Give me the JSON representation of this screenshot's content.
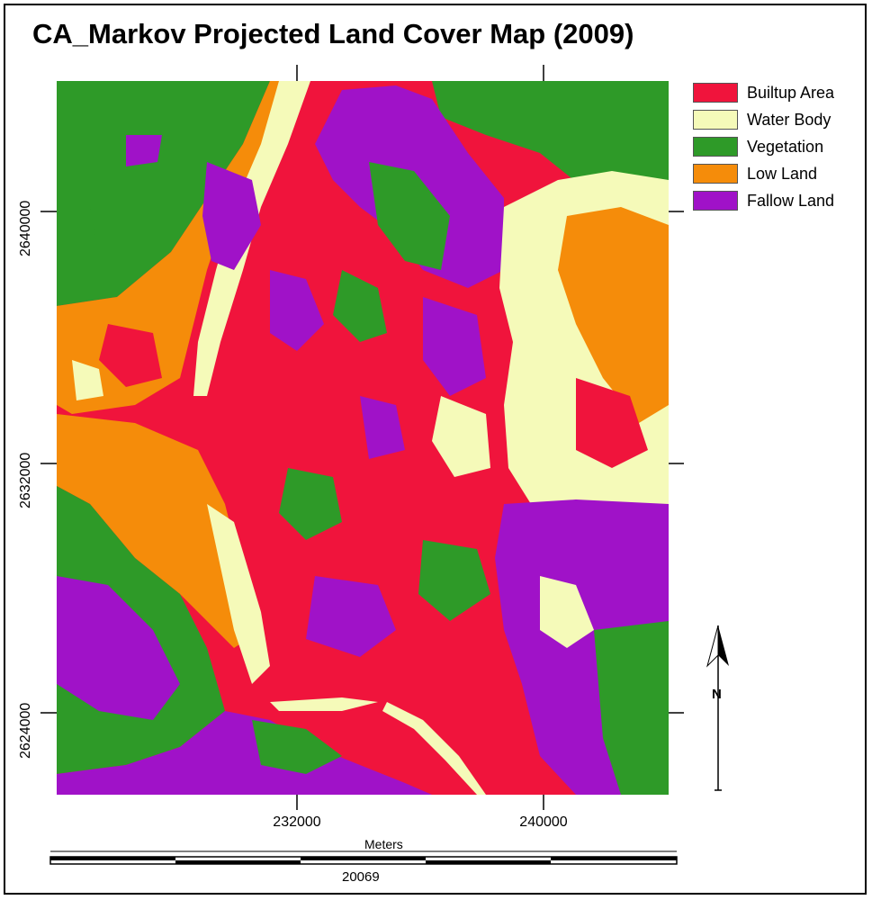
{
  "map": {
    "title": "CA_Markov Projected Land Cover Map (2009)",
    "legend": [
      {
        "label": "Builtup Area",
        "color": "#f0143c"
      },
      {
        "label": "Water Body",
        "color": "#f5fab9"
      },
      {
        "label": "Vegetation",
        "color": "#2e9a28"
      },
      {
        "label": "Low Land",
        "color": "#f58c0a"
      },
      {
        "label": "Fallow Land",
        "color": "#a012c8"
      }
    ],
    "x_ticks": [
      "232000",
      "240000"
    ],
    "y_ticks": [
      "2640000",
      "2632000",
      "2624000"
    ],
    "scale_unit": "Meters",
    "scale_value": "20069",
    "north_arrow_label": "N"
  }
}
